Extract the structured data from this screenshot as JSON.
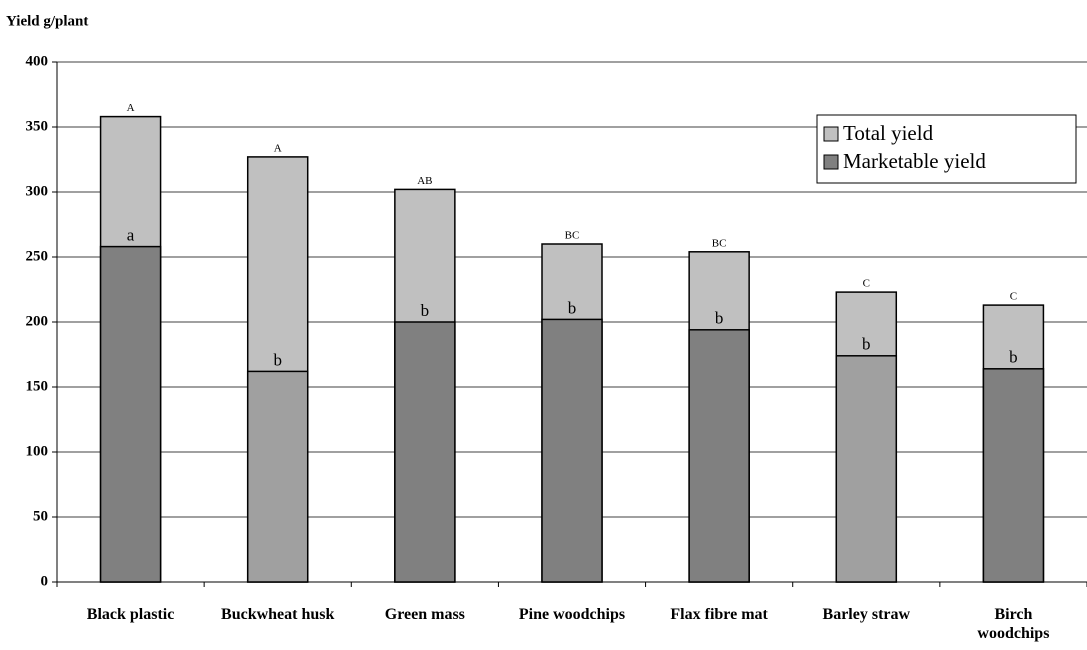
{
  "chart_data": {
    "type": "bar",
    "stacking": "overlay",
    "y_label": "Yield g/plant",
    "categories": [
      "Black plastic",
      "Buckwheat husk",
      "Green mass",
      "Pine woodchips",
      "Flax fibre mat",
      "Barley straw",
      "Birch woodchips"
    ],
    "series": [
      {
        "name": "Total yield",
        "color": "#c0c0c0",
        "values": [
          358,
          327,
          302,
          260,
          254,
          223,
          213
        ],
        "annotations": [
          "A",
          "A",
          "AB",
          "BC",
          "BC",
          "C",
          "C"
        ]
      },
      {
        "name": "Marketable yield",
        "color": "#808080",
        "bar_colors": [
          "#808080",
          "#a0a0a0",
          "#808080",
          "#808080",
          "#808080",
          "#a0a0a0",
          "#808080"
        ],
        "values": [
          258,
          162,
          200,
          202,
          194,
          174,
          164
        ],
        "annotations": [
          "a",
          "b",
          "b",
          "b",
          "b",
          "b",
          "b"
        ]
      }
    ],
    "ylim": [
      0,
      400
    ],
    "yticks": [
      0,
      50,
      100,
      150,
      200,
      250,
      300,
      350,
      400
    ],
    "grid": true,
    "legend": "upper right"
  }
}
